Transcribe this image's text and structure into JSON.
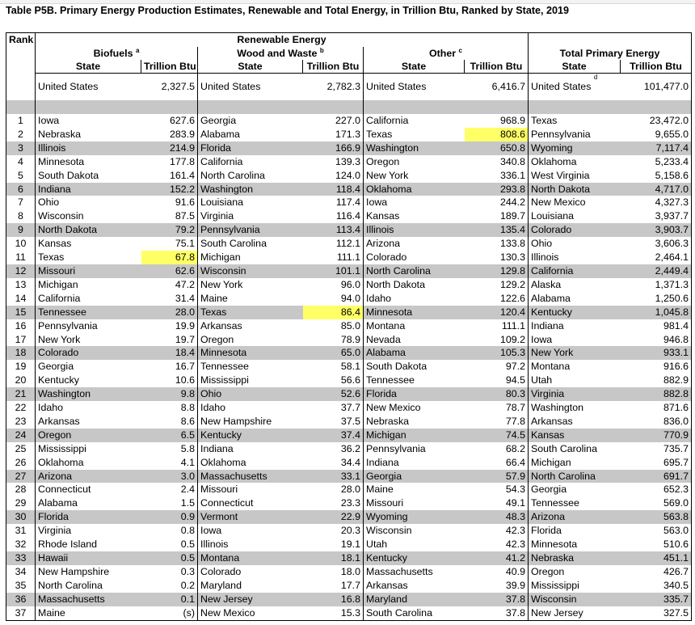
{
  "title": "Table P5B.  Primary Energy Production Estimates, Renewable and Total Energy, in Trillion Btu, Ranked by State, 2019",
  "headers": {
    "rank": "Rank",
    "renewable": "Renewable Energy",
    "biofuels": "Biofuels",
    "biofuels_note": "a",
    "wood": "Wood and Waste",
    "wood_note": "b",
    "other": "Other",
    "other_note": "c",
    "total": "Total Primary Energy",
    "state": "State",
    "unit": "Trillion Btu",
    "us_note": "d"
  },
  "us_row": {
    "label": "United States",
    "biofuels": "2,327.5",
    "wood": "2,782.3",
    "other": "6,416.7",
    "total": "101,477.0"
  },
  "rows": [
    [
      "1",
      "Iowa",
      "627.6",
      "Georgia",
      "227.0",
      "California",
      "968.9",
      "Texas",
      "23,472.0"
    ],
    [
      "2",
      "Nebraska",
      "283.9",
      "Alabama",
      "171.3",
      "Texas",
      "808.6",
      "Pennsylvania",
      "9,655.0"
    ],
    [
      "3",
      "Illinois",
      "214.9",
      "Florida",
      "166.9",
      "Washington",
      "650.8",
      "Wyoming",
      "7,117.4"
    ],
    [
      "4",
      "Minnesota",
      "177.8",
      "California",
      "139.3",
      "Oregon",
      "340.8",
      "Oklahoma",
      "5,233.4"
    ],
    [
      "5",
      "South Dakota",
      "161.4",
      "North Carolina",
      "124.0",
      "New York",
      "336.1",
      "West Virginia",
      "5,158.6"
    ],
    [
      "6",
      "Indiana",
      "152.2",
      "Washington",
      "118.4",
      "Oklahoma",
      "293.8",
      "North Dakota",
      "4,717.0"
    ],
    [
      "7",
      "Ohio",
      "91.6",
      "Louisiana",
      "117.4",
      "Iowa",
      "244.2",
      "New Mexico",
      "4,327.3"
    ],
    [
      "8",
      "Wisconsin",
      "87.5",
      "Virginia",
      "116.4",
      "Kansas",
      "189.7",
      "Louisiana",
      "3,937.7"
    ],
    [
      "9",
      "North Dakota",
      "79.2",
      "Pennsylvania",
      "113.4",
      "Illinois",
      "135.4",
      "Colorado",
      "3,903.7"
    ],
    [
      "10",
      "Kansas",
      "75.1",
      "South Carolina",
      "112.1",
      "Arizona",
      "133.8",
      "Ohio",
      "3,606.3"
    ],
    [
      "11",
      "Texas",
      "67.8",
      "Michigan",
      "111.1",
      "Colorado",
      "130.3",
      "Illinois",
      "2,464.1"
    ],
    [
      "12",
      "Missouri",
      "62.6",
      "Wisconsin",
      "101.1",
      "North Carolina",
      "129.8",
      "California",
      "2,449.4"
    ],
    [
      "13",
      "Michigan",
      "47.2",
      "New York",
      "96.0",
      "North Dakota",
      "129.2",
      "Alaska",
      "1,371.3"
    ],
    [
      "14",
      "California",
      "31.4",
      "Maine",
      "94.0",
      "Idaho",
      "122.6",
      "Alabama",
      "1,250.6"
    ],
    [
      "15",
      "Tennessee",
      "28.0",
      "Texas",
      "86.4",
      "Minnesota",
      "120.4",
      "Kentucky",
      "1,045.8"
    ],
    [
      "16",
      "Pennsylvania",
      "19.9",
      "Arkansas",
      "85.0",
      "Montana",
      "111.1",
      "Indiana",
      "981.4"
    ],
    [
      "17",
      "New York",
      "19.7",
      "Oregon",
      "78.9",
      "Nevada",
      "109.2",
      "Iowa",
      "946.8"
    ],
    [
      "18",
      "Colorado",
      "18.4",
      "Minnesota",
      "65.0",
      "Alabama",
      "105.3",
      "New York",
      "933.1"
    ],
    [
      "19",
      "Georgia",
      "16.7",
      "Tennessee",
      "58.1",
      "South Dakota",
      "97.2",
      "Montana",
      "916.6"
    ],
    [
      "20",
      "Kentucky",
      "10.6",
      "Mississippi",
      "56.6",
      "Tennessee",
      "94.5",
      "Utah",
      "882.9"
    ],
    [
      "21",
      "Washington",
      "9.8",
      "Ohio",
      "52.6",
      "Florida",
      "80.3",
      "Virginia",
      "882.8"
    ],
    [
      "22",
      "Idaho",
      "8.8",
      "Idaho",
      "37.7",
      "New Mexico",
      "78.7",
      "Washington",
      "871.6"
    ],
    [
      "23",
      "Arkansas",
      "8.6",
      "New Hampshire",
      "37.5",
      "Nebraska",
      "77.8",
      "Arkansas",
      "836.0"
    ],
    [
      "24",
      "Oregon",
      "6.5",
      "Kentucky",
      "37.4",
      "Michigan",
      "74.5",
      "Kansas",
      "770.9"
    ],
    [
      "25",
      "Mississippi",
      "5.8",
      "Indiana",
      "36.2",
      "Pennsylvania",
      "68.2",
      "South Carolina",
      "735.7"
    ],
    [
      "26",
      "Oklahoma",
      "4.1",
      "Oklahoma",
      "34.4",
      "Indiana",
      "66.4",
      "Michigan",
      "695.7"
    ],
    [
      "27",
      "Arizona",
      "3.0",
      "Massachusetts",
      "33.1",
      "Georgia",
      "57.9",
      "North Carolina",
      "691.7"
    ],
    [
      "28",
      "Connecticut",
      "2.4",
      "Missouri",
      "28.0",
      "Maine",
      "54.3",
      "Georgia",
      "652.3"
    ],
    [
      "29",
      "Alabama",
      "1.5",
      "Connecticut",
      "23.3",
      "Missouri",
      "49.1",
      "Tennessee",
      "569.0"
    ],
    [
      "30",
      "Florida",
      "0.9",
      "Vermont",
      "22.9",
      "Wyoming",
      "48.3",
      "Arizona",
      "563.8"
    ],
    [
      "31",
      "Virginia",
      "0.8",
      "Iowa",
      "20.3",
      "Wisconsin",
      "42.3",
      "Florida",
      "563.0"
    ],
    [
      "32",
      "Rhode Island",
      "0.5",
      "Illinois",
      "19.1",
      "Utah",
      "42.3",
      "Minnesota",
      "510.6"
    ],
    [
      "33",
      "Hawaii",
      "0.5",
      "Montana",
      "18.1",
      "Kentucky",
      "41.2",
      "Nebraska",
      "451.1"
    ],
    [
      "34",
      "New Hampshire",
      "0.3",
      "Colorado",
      "18.0",
      "Massachusetts",
      "40.9",
      "Oregon",
      "426.7"
    ],
    [
      "35",
      "North Carolina",
      "0.2",
      "Maryland",
      "17.7",
      "Arkansas",
      "39.9",
      "Mississippi",
      "340.5"
    ],
    [
      "36",
      "Massachusetts",
      "0.1",
      "New Jersey",
      "16.8",
      "Maryland",
      "37.8",
      "Wisconsin",
      "335.7"
    ],
    [
      "37",
      "Maine",
      "(s)",
      "New Mexico",
      "15.3",
      "South Carolina",
      "37.8",
      "New Jersey",
      "327.5"
    ]
  ],
  "highlight_color": "#ffff66",
  "band_color": "#c7c7c7"
}
